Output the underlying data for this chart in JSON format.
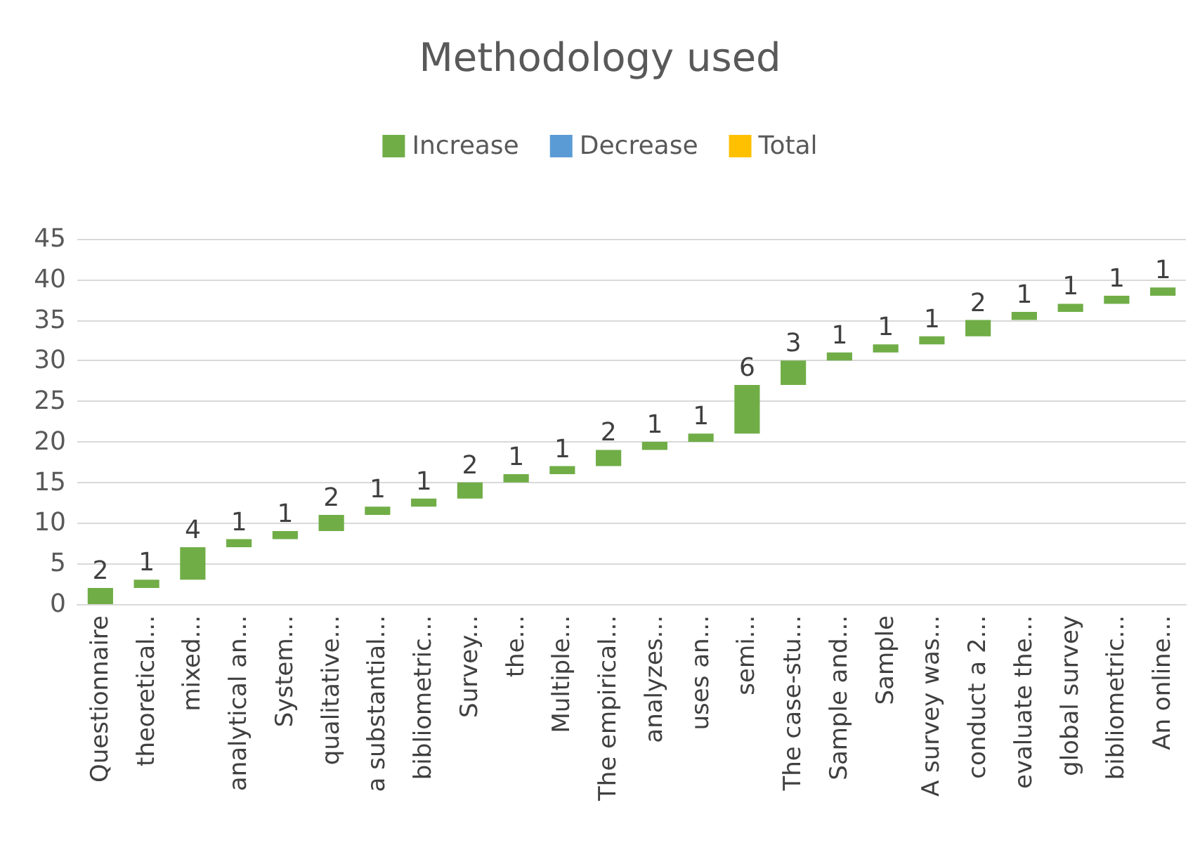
{
  "chart_data": {
    "type": "bar",
    "title": "Methodology used",
    "categories": [
      "Questionnaire",
      "theoretical...",
      "mixed...",
      "analytical an...",
      "System...",
      "qualitative...",
      "a substantial...",
      "bibliometric...",
      "Survey...",
      "the...",
      "Multiple...",
      "The empirical...",
      "analyzes...",
      "uses an...",
      "semi...",
      "The case-stu...",
      "Sample and...",
      "Sample",
      "A survey was...",
      "conduct a 2...",
      "evaluate the...",
      "global survey",
      "bibliometric...",
      "An online..."
    ],
    "series": [
      {
        "name": "Increase",
        "color": "#70ad47",
        "values": [
          2,
          1,
          4,
          1,
          1,
          2,
          1,
          1,
          2,
          1,
          1,
          2,
          1,
          1,
          6,
          3,
          1,
          1,
          1,
          2,
          1,
          1,
          1,
          1
        ],
        "base": [
          0,
          2,
          3,
          7,
          8,
          9,
          11,
          12,
          13,
          15,
          16,
          17,
          19,
          20,
          21,
          27,
          30,
          31,
          32,
          33,
          35,
          36,
          37,
          38
        ]
      },
      {
        "name": "Decrease",
        "color": "#5b9bd5",
        "values": [
          null,
          null,
          null,
          null,
          null,
          null,
          null,
          null,
          null,
          null,
          null,
          null,
          null,
          null,
          null,
          null,
          null,
          null,
          null,
          null,
          null,
          null,
          null,
          null
        ]
      },
      {
        "name": "Total",
        "color": "#ffc000",
        "values": [
          null,
          null,
          null,
          null,
          null,
          null,
          null,
          null,
          null,
          null,
          null,
          null,
          null,
          null,
          null,
          null,
          null,
          null,
          null,
          null,
          null,
          null,
          null,
          null
        ]
      }
    ],
    "ylim": [
      0,
      45
    ],
    "yticks": [
      0,
      5,
      10,
      15,
      20,
      25,
      30,
      35,
      40,
      45
    ],
    "grid": "y",
    "legend": "top",
    "data_labels": true
  }
}
